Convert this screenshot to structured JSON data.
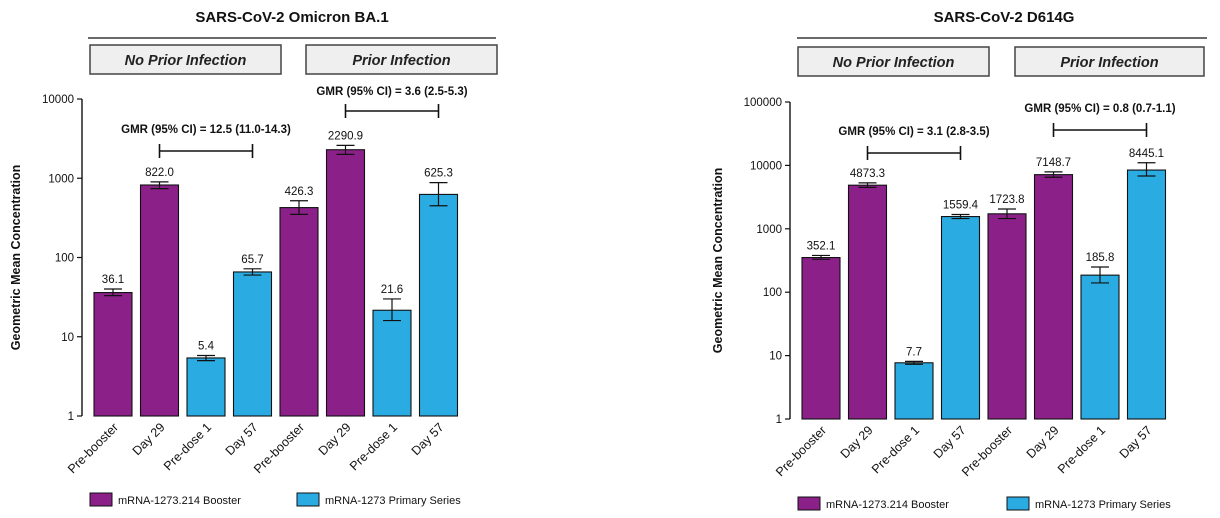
{
  "legend": {
    "booster": "mRNA-1273.214 Booster",
    "primary": "mRNA-1273 Primary Series"
  },
  "colors": {
    "booster": "#8a2088",
    "primary": "#2aace2"
  },
  "chart_data": [
    {
      "type": "bar",
      "title": "SARS-CoV-2 Omicron BA.1",
      "ylabel": "Geometric Mean Concentration",
      "yscale": "log",
      "ylim": [
        1,
        10000
      ],
      "yticks": [
        "1",
        "10",
        "100",
        "1000",
        "10000"
      ],
      "groups": [
        "No Prior Infection",
        "Prior Infection"
      ],
      "categories": [
        "Pre-booster",
        "Day 29",
        "Pre-dose 1",
        "Day 57",
        "Pre-booster",
        "Day 29",
        "Pre-dose 1",
        "Day 57"
      ],
      "values": [
        36.1,
        822.0,
        5.4,
        65.7,
        426.3,
        2290.9,
        21.6,
        625.3
      ],
      "labels": [
        "36.1",
        "822.0",
        "5.4",
        "65.7",
        "426.3",
        "2290.9",
        "21.6",
        "625.3"
      ],
      "ci_low": [
        33,
        740,
        5.0,
        60,
        350,
        2000,
        16,
        450
      ],
      "ci_high": [
        40,
        900,
        5.8,
        72,
        520,
        2600,
        30,
        880
      ],
      "series_of_bar": [
        "booster",
        "booster",
        "primary",
        "primary",
        "booster",
        "booster",
        "primary",
        "primary"
      ],
      "annotations": [
        {
          "text": "GMR (95% CI) = 12.5 (11.0-14.3)",
          "from_bar": 1,
          "to_bar": 3
        },
        {
          "text": "GMR (95% CI) = 3.6 (2.5-5.3)",
          "from_bar": 5,
          "to_bar": 7
        }
      ]
    },
    {
      "type": "bar",
      "title": "SARS-CoV-2 D614G",
      "ylabel": "Geometric Mean Concentration",
      "yscale": "log",
      "ylim": [
        1,
        100000
      ],
      "yticks": [
        "1",
        "10",
        "100",
        "1000",
        "10000",
        "100000"
      ],
      "groups": [
        "No Prior Infection",
        "Prior Infection"
      ],
      "categories": [
        "Pre-booster",
        "Day 29",
        "Pre-dose 1",
        "Day 57",
        "Pre-booster",
        "Day 29",
        "Pre-dose 1",
        "Day 57"
      ],
      "values": [
        352.1,
        4873.3,
        7.7,
        1559.4,
        1723.8,
        7148.7,
        185.8,
        8445.1
      ],
      "labels": [
        "352.1",
        "4873.3",
        "7.7",
        "1559.4",
        "1723.8",
        "7148.7",
        "185.8",
        "8445.1"
      ],
      "ci_low": [
        330,
        4500,
        7.3,
        1450,
        1450,
        6500,
        140,
        6800
      ],
      "ci_high": [
        380,
        5300,
        8.1,
        1680,
        2050,
        7900,
        250,
        11000
      ],
      "series_of_bar": [
        "booster",
        "booster",
        "primary",
        "primary",
        "booster",
        "booster",
        "primary",
        "primary"
      ],
      "annotations": [
        {
          "text": "GMR (95% CI) = 3.1 (2.8-3.5)",
          "from_bar": 1,
          "to_bar": 3
        },
        {
          "text": "GMR (95% CI) = 0.8 (0.7-1.1)",
          "from_bar": 5,
          "to_bar": 7
        }
      ]
    }
  ]
}
